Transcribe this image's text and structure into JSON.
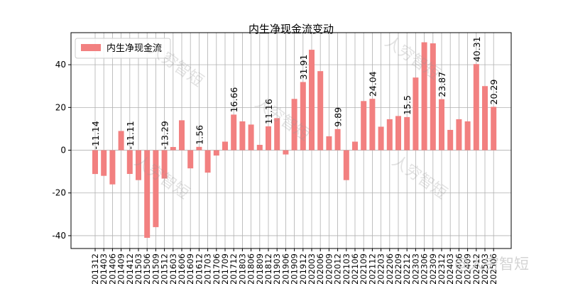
{
  "watermark": "人穷智短",
  "watermark_corner": "@人穷智短",
  "colors": {
    "bar": "#f28080",
    "axis": "#000000",
    "grid": "#b0b0b0"
  },
  "chart_data": {
    "type": "bar",
    "title": "内生净现金流变动",
    "legend": {
      "label": "内生净现金流",
      "position": "top-left"
    },
    "grid": true,
    "xlabel": "",
    "ylabel": "",
    "ylim": [
      -46,
      55
    ],
    "yticks": [
      -40,
      -20,
      0,
      20,
      40
    ],
    "categories": [
      "201312",
      "201403",
      "201406",
      "201409",
      "201412",
      "201503",
      "201506",
      "201509",
      "201512",
      "201603",
      "201606",
      "201609",
      "201612",
      "201703",
      "201706",
      "201709",
      "201712",
      "201803",
      "201806",
      "201809",
      "201812",
      "201903",
      "201906",
      "201909",
      "201912",
      "202003",
      "202006",
      "202009",
      "202012",
      "202103",
      "202106",
      "202109",
      "202112",
      "202203",
      "202206",
      "202209",
      "202212",
      "202303",
      "202306",
      "202309",
      "202312",
      "202403",
      "202406",
      "202409",
      "202412",
      "202503",
      "202506"
    ],
    "values": [
      -11.14,
      -12,
      -16,
      9,
      -11.11,
      -14,
      -41,
      -36,
      -13.29,
      1.5,
      14,
      -8.5,
      1.56,
      -10.5,
      -2.5,
      4,
      16.66,
      13.5,
      12,
      2.5,
      11.16,
      15,
      -2,
      24,
      31.91,
      47,
      37,
      6.5,
      9.89,
      -14,
      4,
      23,
      24.04,
      11,
      14.5,
      16,
      15.5,
      34,
      50.5,
      50,
      23.87,
      9.5,
      14.5,
      13.5,
      40.31,
      30,
      20.29
    ],
    "data_labels": [
      {
        "index": 0,
        "text": "-11.14"
      },
      {
        "index": 4,
        "text": "-11.11"
      },
      {
        "index": 8,
        "text": "-13.29"
      },
      {
        "index": 12,
        "text": "1.56"
      },
      {
        "index": 16,
        "text": "16.66"
      },
      {
        "index": 20,
        "text": "11.16"
      },
      {
        "index": 24,
        "text": "31.91"
      },
      {
        "index": 28,
        "text": "9.89"
      },
      {
        "index": 32,
        "text": "24.04"
      },
      {
        "index": 36,
        "text": "15.5"
      },
      {
        "index": 40,
        "text": "23.87"
      },
      {
        "index": 44,
        "text": "40.31"
      },
      {
        "index": 46,
        "text": "20.29"
      }
    ]
  }
}
